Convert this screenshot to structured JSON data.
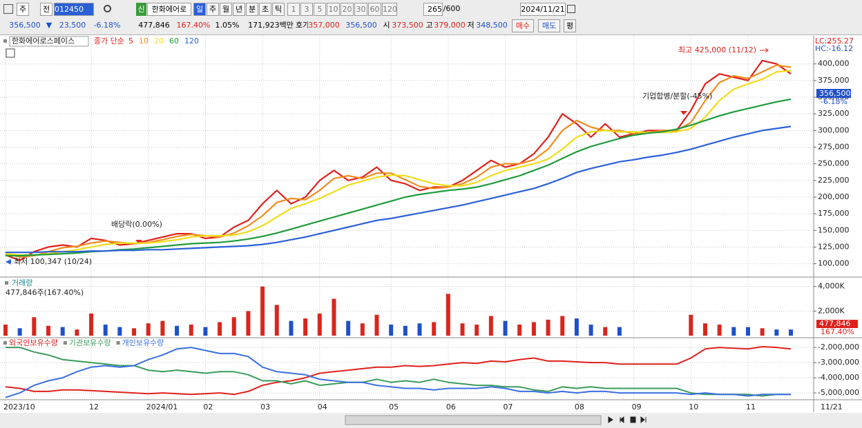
{
  "toolbar": {
    "period_unit": "주",
    "price_type": "전",
    "code": "012450",
    "badge": "신",
    "name": "한화에어로",
    "periods": [
      "일",
      "주",
      "월",
      "년",
      "분",
      "초",
      "틱"
    ],
    "intervals": [
      "1",
      "3",
      "5",
      "10",
      "20",
      "30",
      "60",
      "120"
    ],
    "count": "265",
    "count_max": "/600",
    "date": "2024/11/21"
  },
  "quote": {
    "price": "356,500",
    "arrow": "▼",
    "change": "23,500",
    "change_rate": "-6.18%",
    "volume": "477,846",
    "volume_ratio": "167.40%",
    "turnover_rate": "1.05%",
    "trade_value": "171,923백만",
    "quote_label": "호가",
    "ask": "357,000",
    "bid": "356,500",
    "open_label": "시",
    "open": "373,500",
    "high_label": "고",
    "high": "379,000",
    "low_label": "저",
    "low": "348,500",
    "buy": "매수",
    "sell": "매도",
    "avg": "평"
  },
  "chart_data": [
    {
      "type": "line",
      "title": "한화에어로스페이스",
      "subtitle": "종가 단순",
      "categories": [
        "2023/10",
        null,
        null,
        null,
        null,
        null,
        "12",
        null,
        null,
        null,
        "2024/01",
        null,
        null,
        null,
        "02",
        null,
        null,
        null,
        "03",
        null,
        null,
        null,
        "04",
        null,
        null,
        null,
        null,
        "05",
        null,
        null,
        null,
        "06",
        null,
        null,
        null,
        "07",
        null,
        null,
        null,
        null,
        "08",
        null,
        null,
        null,
        "09",
        null,
        null,
        null,
        "10",
        null,
        null,
        null,
        "11",
        null,
        null,
        null
      ],
      "last_date": "11/21",
      "series": [
        {
          "name": "5",
          "color": "#e0201c",
          "values": [
            113000,
            105000,
            118000,
            125000,
            128000,
            125000,
            138000,
            135000,
            128000,
            130000,
            135000,
            140000,
            145000,
            145000,
            138000,
            140000,
            155000,
            165000,
            190000,
            210000,
            190000,
            200000,
            225000,
            240000,
            225000,
            230000,
            245000,
            225000,
            220000,
            210000,
            215000,
            215000,
            225000,
            240000,
            255000,
            245000,
            250000,
            265000,
            290000,
            325000,
            310000,
            290000,
            310000,
            290000,
            295000,
            300000,
            300000,
            300000,
            330000,
            370000,
            385000,
            380000,
            375000,
            405000,
            400000,
            385000
          ]
        },
        {
          "name": "10",
          "color": "#f08c1e",
          "values": [
            115000,
            110000,
            112000,
            118000,
            124000,
            126000,
            131000,
            134000,
            132000,
            130000,
            132000,
            136000,
            141000,
            144000,
            142000,
            140000,
            146000,
            157000,
            172000,
            192000,
            198000,
            196000,
            210000,
            228000,
            232000,
            228000,
            236000,
            236000,
            226000,
            216000,
            213000,
            215000,
            220000,
            230000,
            245000,
            250000,
            250000,
            256000,
            272000,
            300000,
            315000,
            305000,
            300000,
            300000,
            295000,
            297000,
            300000,
            300000,
            312000,
            345000,
            372000,
            382000,
            378000,
            388000,
            398000,
            395000
          ]
        },
        {
          "name": "20",
          "color": "#f2dc18",
          "values": [
            115000,
            113000,
            113000,
            115000,
            118000,
            121000,
            125000,
            129000,
            131000,
            131000,
            131000,
            133000,
            136000,
            140000,
            142000,
            142000,
            143000,
            148000,
            157000,
            170000,
            183000,
            190000,
            198000,
            208000,
            218000,
            224000,
            230000,
            233000,
            232000,
            226000,
            220000,
            217000,
            217000,
            222000,
            232000,
            240000,
            245000,
            250000,
            257000,
            272000,
            290000,
            298000,
            300000,
            298000,
            298000,
            297000,
            297000,
            298000,
            303000,
            320000,
            345000,
            362000,
            370000,
            377000,
            388000,
            390000
          ]
        },
        {
          "name": "60",
          "color": "#1e9a3a",
          "values": [
            112000,
            112000,
            113000,
            114000,
            115000,
            116000,
            118000,
            119000,
            121000,
            122000,
            124000,
            126000,
            128000,
            130000,
            131000,
            132000,
            134000,
            137000,
            141000,
            146000,
            152000,
            158000,
            164000,
            170000,
            176000,
            182000,
            188000,
            194000,
            200000,
            204000,
            207000,
            210000,
            212000,
            215000,
            220000,
            226000,
            232000,
            240000,
            248000,
            258000,
            268000,
            276000,
            282000,
            288000,
            293000,
            296000,
            298000,
            302000,
            308000,
            315000,
            322000,
            328000,
            333000,
            338000,
            343000,
            347000
          ]
        },
        {
          "name": "120",
          "color": "#2a5fd8",
          "values": [
            117000,
            117000,
            117000,
            118000,
            118000,
            118000,
            119000,
            119000,
            120000,
            120000,
            121000,
            121000,
            122000,
            123000,
            124000,
            125000,
            126000,
            127000,
            129000,
            132000,
            136000,
            140000,
            145000,
            150000,
            155000,
            160000,
            165000,
            168000,
            172000,
            176000,
            180000,
            184000,
            188000,
            193000,
            198000,
            203000,
            208000,
            213000,
            220000,
            228000,
            237000,
            243000,
            248000,
            253000,
            256000,
            260000,
            263000,
            267000,
            272000,
            278000,
            284000,
            290000,
            295000,
            300000,
            303000,
            306000
          ]
        }
      ],
      "ylim": [
        82000,
        439000
      ],
      "yticks": [
        {
          "value": 100000,
          "label": "100,000"
        },
        {
          "value": 125000,
          "label": "125,000"
        },
        {
          "value": 150000,
          "label": "150,000"
        },
        {
          "value": 175000,
          "label": "175,000"
        },
        {
          "value": 200000,
          "label": "200,000"
        },
        {
          "value": 225000,
          "label": "225,000"
        },
        {
          "value": 250000,
          "label": "250,000"
        },
        {
          "value": 275000,
          "label": "275,000"
        },
        {
          "value": 300000,
          "label": "300,000"
        },
        {
          "value": 325000,
          "label": "325,000"
        },
        {
          "value": 350000,
          "label": "350,000"
        },
        {
          "value": 375000,
          "label": "375,000"
        },
        {
          "value": 400000,
          "label": "400,000"
        }
      ],
      "grid": true,
      "lc_label": "LC:255.27",
      "hc_label": "HC:-16.12",
      "last_label": "356,500",
      "last_change": "-6.18%",
      "annotations": [
        "최고 425,000 (11/12)",
        "최저 100,347 (10/24)",
        "배당락(0.00%)",
        "기업합병/분할(-45%)"
      ]
    },
    {
      "type": "bar",
      "title": "거래량",
      "subtitle": "477,846주(167.40%)",
      "values": [
        900,
        600,
        1500,
        800,
        700,
        500,
        1800,
        900,
        700,
        600,
        1000,
        1200,
        800,
        900,
        700,
        1100,
        1500,
        2000,
        4000,
        2500,
        1200,
        1400,
        1800,
        3000,
        1200,
        1000,
        1700,
        900,
        800,
        1000,
        1100,
        3400,
        1000,
        900,
        1600,
        1200,
        900,
        1100,
        1300,
        1600,
        1400,
        900,
        700,
        700,
        null,
        null,
        null,
        null,
        1700,
        1000,
        900,
        700,
        700,
        600,
        500,
        500
      ],
      "bar_colors": [
        "#d9261c",
        "#2050c8",
        "#d9261c",
        "#d9261c",
        "#2050c8",
        "#d9261c",
        "#d9261c",
        "#2050c8",
        "#2050c8",
        "#d9261c",
        "#d9261c",
        "#d9261c",
        "#2050c8",
        "#d9261c",
        "#2050c8",
        "#d9261c",
        "#d9261c",
        "#d9261c",
        "#d9261c",
        "#d9261c",
        "#2050c8",
        "#d9261c",
        "#d9261c",
        "#d9261c",
        "#2050c8",
        "#d9261c",
        "#d9261c",
        "#2050c8",
        "#2050c8",
        "#2050c8",
        "#d9261c",
        "#d9261c",
        "#d9261c",
        "#d9261c",
        "#d9261c",
        "#2050c8",
        "#d9261c",
        "#d9261c",
        "#d9261c",
        "#d9261c",
        "#2050c8",
        "#2050c8",
        "#d9261c",
        "#2050c8",
        null,
        null,
        null,
        null,
        "#d9261c",
        "#d9261c",
        "#d9261c",
        "#2050c8",
        "#2050c8",
        "#d9261c",
        "#2050c8",
        "#2050c8"
      ],
      "ylim": [
        0,
        4600
      ],
      "yticks": [
        {
          "value": 2000,
          "label": "2,000K"
        },
        {
          "value": 4000,
          "label": "4,000K"
        }
      ],
      "grid": true,
      "last_label": "477,846",
      "last_change": "167.40%"
    },
    {
      "type": "line",
      "series": [
        {
          "name": "외국인보유수량",
          "color": "#e0201c",
          "values": [
            -4600000,
            -4700000,
            -4900000,
            -4900000,
            -4800000,
            -4800000,
            -4850000,
            -4900000,
            -4950000,
            -5000000,
            -5050000,
            -5000000,
            -5050000,
            -5100000,
            -5050000,
            -5000000,
            -5100000,
            -4900000,
            -4500000,
            -4300000,
            -4200000,
            -4000000,
            -3700000,
            -3600000,
            -3500000,
            -3400000,
            -3300000,
            -3300000,
            -3200000,
            -3250000,
            -3200000,
            -3100000,
            -3000000,
            -3050000,
            -2900000,
            -2950000,
            -2800000,
            -2700000,
            -2900000,
            -2900000,
            -2950000,
            -3000000,
            -3000000,
            -3100000,
            -3100000,
            -3100000,
            -3100000,
            -3100000,
            -2700000,
            -2100000,
            -2000000,
            -2050000,
            -2100000,
            -1950000,
            -2000000,
            -2100000
          ]
        },
        {
          "name": "기관보유수량",
          "color": "#3a9a5a",
          "values": [
            -2000000,
            -2000000,
            -2300000,
            -2500000,
            -2800000,
            -2900000,
            -3000000,
            -3100000,
            -3200000,
            -3200000,
            -3500000,
            -3600000,
            -3500000,
            -3600000,
            -3700000,
            -3600000,
            -3600000,
            -3800000,
            -4200000,
            -4200000,
            -4400000,
            -4200000,
            -4500000,
            -4400000,
            -4300000,
            -4300000,
            -4100000,
            -4300000,
            -4200000,
            -4300000,
            -4100000,
            -4300000,
            -4400000,
            -4500000,
            -4500000,
            -4600000,
            -4600000,
            -4800000,
            -4900000,
            -4600000,
            -4700000,
            -4600000,
            -4700000,
            -4700000,
            -4700000,
            -4700000,
            -4700000,
            -4700000,
            -5000000,
            -5100000,
            -5100000,
            -5100000,
            -5100000,
            -5200000,
            -5100000,
            -5100000
          ]
        },
        {
          "name": "개인보유수량",
          "color": "#3a6ee0",
          "values": [
            -5300000,
            -5000000,
            -4500000,
            -4200000,
            -4000000,
            -3600000,
            -3300000,
            -3200000,
            -3300000,
            -3200000,
            -2800000,
            -2500000,
            -2100000,
            -2000000,
            -2200000,
            -2400000,
            -2400000,
            -2600000,
            -3300000,
            -3600000,
            -3700000,
            -3800000,
            -4100000,
            -4200000,
            -4300000,
            -4300000,
            -4500000,
            -4600000,
            -4700000,
            -4700000,
            -4800000,
            -4700000,
            -4700000,
            -4700000,
            -4600000,
            -4700000,
            -4900000,
            -4900000,
            -5000000,
            -4900000,
            -5000000,
            -4900000,
            -4900000,
            -5000000,
            -5000000,
            -5000000,
            -5000000,
            -5000000,
            -5100000,
            -5000000,
            -5100000,
            -5100000,
            -5200000,
            -5100000,
            -5100000,
            -5100000
          ]
        }
      ],
      "ylim": [
        -5450000,
        -1450000
      ],
      "yticks": [
        {
          "value": -5000000,
          "label": "-5,000,000"
        },
        {
          "value": -4000000,
          "label": "-4,000,000"
        },
        {
          "value": -3000000,
          "label": "-3,000,000"
        },
        {
          "value": -2000000,
          "label": "-2,000,000"
        }
      ],
      "grid": true
    }
  ]
}
